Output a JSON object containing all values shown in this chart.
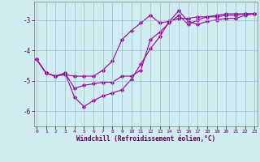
{
  "xlabel": "Windchill (Refroidissement éolien,°C)",
  "bg_color": "#d0ecf0",
  "line_color": "#990099",
  "grid_color": "#99bbcc",
  "line1_x": [
    0,
    1,
    2,
    3,
    4,
    5,
    6,
    7,
    8,
    9,
    10,
    11,
    12,
    13,
    14,
    15,
    16,
    17,
    18,
    19,
    20,
    21,
    22,
    23
  ],
  "line1_y": [
    -4.3,
    -4.75,
    -4.85,
    -4.75,
    -5.25,
    -5.15,
    -5.1,
    -5.05,
    -5.05,
    -4.85,
    -4.85,
    -4.65,
    -3.65,
    -3.4,
    -3.1,
    -2.85,
    -3.15,
    -3.0,
    -2.9,
    -2.9,
    -2.85,
    -2.85,
    -2.8,
    -2.8
  ],
  "line2_x": [
    0,
    1,
    2,
    3,
    4,
    5,
    6,
    7,
    8,
    9,
    10,
    11,
    12,
    13,
    14,
    15,
    16,
    17,
    18,
    19,
    20,
    21,
    22,
    23
  ],
  "line2_y": [
    -4.3,
    -4.75,
    -4.85,
    -4.75,
    -5.55,
    -5.85,
    -5.65,
    -5.5,
    -5.4,
    -5.3,
    -4.95,
    -4.45,
    -3.95,
    -3.55,
    -3.05,
    -2.7,
    -3.05,
    -3.15,
    -3.05,
    -3.0,
    -2.95,
    -2.95,
    -2.85,
    -2.8
  ],
  "line3_x": [
    0,
    1,
    2,
    3,
    4,
    5,
    6,
    7,
    8,
    9,
    10,
    11,
    12,
    13,
    14,
    15,
    16,
    17,
    18,
    19,
    20,
    21,
    22,
    23
  ],
  "line3_y": [
    -4.3,
    -4.75,
    -4.85,
    -4.8,
    -4.85,
    -4.85,
    -4.85,
    -4.65,
    -4.35,
    -3.65,
    -3.35,
    -3.1,
    -2.85,
    -3.1,
    -3.05,
    -2.95,
    -2.95,
    -2.9,
    -2.9,
    -2.85,
    -2.8,
    -2.8,
    -2.8,
    -2.8
  ],
  "xlim": [
    -0.3,
    23.3
  ],
  "ylim": [
    -6.5,
    -2.4
  ],
  "yticks": [
    -6,
    -5,
    -4,
    -3
  ],
  "xticks": [
    0,
    1,
    2,
    3,
    4,
    5,
    6,
    7,
    8,
    9,
    10,
    11,
    12,
    13,
    14,
    15,
    16,
    17,
    18,
    19,
    20,
    21,
    22,
    23
  ]
}
